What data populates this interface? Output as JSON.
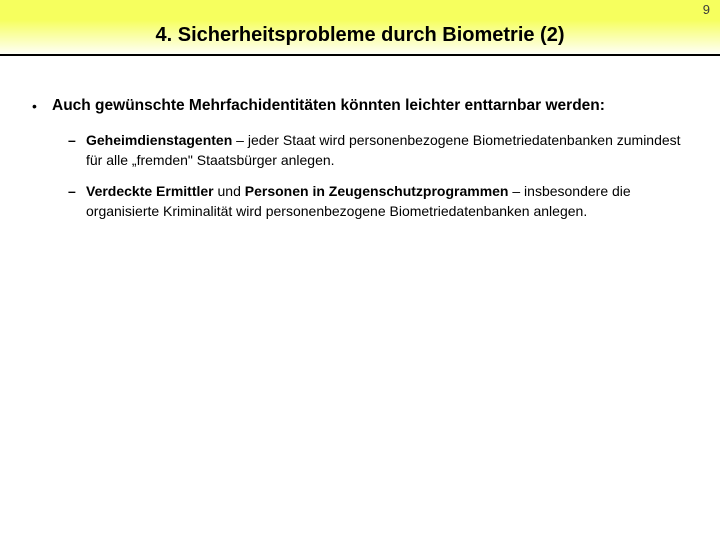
{
  "page_number": "9",
  "title": "4.  Sicherheitsprobleme durch Biometrie  (2)",
  "header": {
    "gradient_top": "#f6ff5e",
    "gradient_bottom": "#ffffff",
    "underline_color": "#000000",
    "title_fontsize": 20,
    "title_color": "#000000"
  },
  "bullet": {
    "marker": "•",
    "text": "Auch gewünschte Mehrfachidentitäten könnten leichter enttarnbar werden:",
    "fontsize": 15.5,
    "font_weight": "bold"
  },
  "sub_items": [
    {
      "marker": "–",
      "bold_lead": "Geheimdienstagenten",
      "rest": " – jeder Staat wird personenbezogene Biometriedatenbanken zumindest für alle „fremden\" Staatsbürger anlegen."
    },
    {
      "marker": "–",
      "bold_lead": "Verdeckte Ermittler",
      "mid_plain": " und ",
      "bold_mid": "Personen in Zeugenschutzprogrammen",
      "rest": " – insbesondere die organisierte Kriminalität wird personenbezogene Biometriedatenbanken anlegen."
    }
  ],
  "body": {
    "sub_fontsize": 14,
    "text_color": "#000000",
    "background_color": "#ffffff"
  }
}
